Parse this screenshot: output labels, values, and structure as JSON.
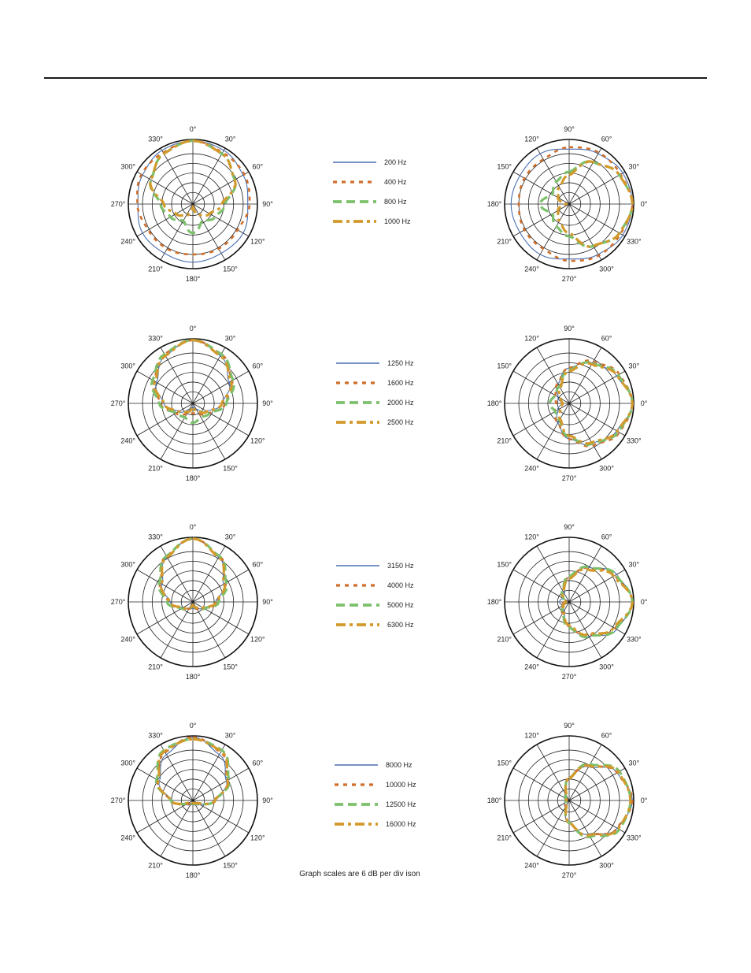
{
  "footnote": "Graph scales are 6 dB per div ison",
  "colors": {
    "blue": "#4a6fb0",
    "orange": "#cf6f2c",
    "green": "#7cc06b",
    "gold": "#d29a2c"
  },
  "chart_data": [
    {
      "type": "line",
      "polar": true,
      "orientation": "vertical",
      "angle_labels": [
        "0°",
        "30°",
        "60°",
        "90°",
        "120°",
        "150°",
        "180°",
        "210°",
        "240°",
        "270°",
        "300°",
        "330°"
      ],
      "series": [
        {
          "name": "200 Hz",
          "style": "solid",
          "color": "#4a6fb0",
          "r": [
            0.98,
            0.96,
            0.9,
            0.85,
            0.9,
            0.88,
            0.9,
            0.88,
            0.9,
            0.85,
            0.9,
            0.96
          ]
        },
        {
          "name": "400 Hz",
          "style": "dot",
          "color": "#cf6f2c",
          "r": [
            0.98,
            0.92,
            0.92,
            0.88,
            0.8,
            0.8,
            0.78,
            0.8,
            0.8,
            0.86,
            0.92,
            0.92
          ]
        },
        {
          "name": "800 Hz",
          "style": "dash",
          "color": "#7cc06b",
          "r": [
            0.98,
            0.9,
            0.75,
            0.5,
            0.4,
            0.3,
            0.45,
            0.3,
            0.4,
            0.5,
            0.75,
            0.9
          ]
        },
        {
          "name": "1000 Hz",
          "style": "dashdot",
          "color": "#d29a2c",
          "r": [
            0.98,
            0.9,
            0.75,
            0.45,
            0.3,
            0.2,
            0.05,
            0.2,
            0.3,
            0.45,
            0.75,
            0.9
          ]
        }
      ]
    },
    {
      "type": "line",
      "polar": true,
      "orientation": "horizontal",
      "angle_labels": [
        "90°",
        "60°",
        "30°",
        "0°",
        "330°",
        "300°",
        "270°",
        "240°",
        "210°",
        "180°",
        "150°",
        "120°"
      ],
      "series": [
        {
          "name": "200 Hz",
          "style": "solid",
          "color": "#4a6fb0",
          "r": [
            0.85,
            0.9,
            0.96,
            0.98,
            0.96,
            0.9,
            0.85,
            0.9,
            0.88,
            0.9,
            0.88,
            0.9
          ]
        },
        {
          "name": "400 Hz",
          "style": "dot",
          "color": "#cf6f2c",
          "r": [
            0.88,
            0.92,
            0.92,
            0.98,
            0.92,
            0.92,
            0.88,
            0.8,
            0.8,
            0.78,
            0.8,
            0.8
          ]
        },
        {
          "name": "800 Hz",
          "style": "dash",
          "color": "#7cc06b",
          "r": [
            0.5,
            0.75,
            0.9,
            0.98,
            0.9,
            0.75,
            0.5,
            0.4,
            0.3,
            0.45,
            0.3,
            0.4
          ]
        },
        {
          "name": "1000 Hz",
          "style": "dashdot",
          "color": "#d29a2c",
          "r": [
            0.45,
            0.75,
            0.9,
            0.98,
            0.9,
            0.75,
            0.45,
            0.3,
            0.2,
            0.05,
            0.2,
            0.3
          ]
        }
      ]
    },
    {
      "type": "line",
      "polar": true,
      "orientation": "vertical",
      "angle_labels": [
        "0°",
        "30°",
        "60°",
        "90°",
        "120°",
        "150°",
        "180°",
        "210°",
        "240°",
        "270°",
        "300°",
        "330°"
      ],
      "series": [
        {
          "name": "1250 Hz",
          "style": "solid",
          "color": "#4a6fb0",
          "r": [
            0.98,
            0.85,
            0.65,
            0.45,
            0.25,
            0.1,
            0.05,
            0.1,
            0.25,
            0.45,
            0.65,
            0.85
          ]
        },
        {
          "name": "1600 Hz",
          "style": "dot",
          "color": "#cf6f2c",
          "r": [
            0.98,
            0.88,
            0.7,
            0.5,
            0.3,
            0.2,
            0.15,
            0.2,
            0.3,
            0.5,
            0.7,
            0.88
          ]
        },
        {
          "name": "2000 Hz",
          "style": "dash",
          "color": "#7cc06b",
          "r": [
            0.98,
            0.88,
            0.72,
            0.52,
            0.3,
            0.25,
            0.3,
            0.25,
            0.3,
            0.52,
            0.72,
            0.88
          ]
        },
        {
          "name": "2500 Hz",
          "style": "dashdot",
          "color": "#d29a2c",
          "r": [
            0.98,
            0.85,
            0.68,
            0.45,
            0.25,
            0.15,
            0.05,
            0.15,
            0.25,
            0.45,
            0.68,
            0.85
          ]
        }
      ]
    },
    {
      "type": "line",
      "polar": true,
      "orientation": "horizontal",
      "angle_labels": [
        "90°",
        "60°",
        "30°",
        "0°",
        "330°",
        "300°",
        "270°",
        "240°",
        "210°",
        "180°",
        "150°",
        "120°"
      ],
      "series": [
        {
          "name": "1250 Hz",
          "style": "solid",
          "color": "#4a6fb0",
          "r": [
            0.55,
            0.72,
            0.85,
            0.98,
            0.85,
            0.72,
            0.55,
            0.35,
            0.2,
            0.1,
            0.2,
            0.35
          ]
        },
        {
          "name": "1600 Hz",
          "style": "dot",
          "color": "#cf6f2c",
          "r": [
            0.55,
            0.75,
            0.9,
            0.98,
            0.9,
            0.75,
            0.55,
            0.35,
            0.25,
            0.2,
            0.25,
            0.35
          ]
        },
        {
          "name": "2000 Hz",
          "style": "dash",
          "color": "#7cc06b",
          "r": [
            0.52,
            0.72,
            0.88,
            0.98,
            0.88,
            0.72,
            0.52,
            0.3,
            0.25,
            0.3,
            0.25,
            0.3
          ]
        },
        {
          "name": "2500 Hz",
          "style": "dashdot",
          "color": "#d29a2c",
          "r": [
            0.5,
            0.7,
            0.86,
            0.98,
            0.86,
            0.7,
            0.5,
            0.28,
            0.15,
            0.1,
            0.15,
            0.28
          ]
        }
      ]
    },
    {
      "type": "line",
      "polar": true,
      "orientation": "vertical",
      "angle_labels": [
        "0°",
        "30°",
        "60°",
        "90°",
        "120°",
        "150°",
        "180°",
        "210°",
        "240°",
        "270°",
        "300°",
        "330°"
      ],
      "series": [
        {
          "name": "3150 Hz",
          "style": "solid",
          "color": "#4a6fb0",
          "r": [
            0.98,
            0.8,
            0.55,
            0.35,
            0.18,
            0.12,
            0.1,
            0.12,
            0.18,
            0.35,
            0.55,
            0.8
          ]
        },
        {
          "name": "4000 Hz",
          "style": "dot",
          "color": "#cf6f2c",
          "r": [
            0.98,
            0.82,
            0.58,
            0.38,
            0.2,
            0.12,
            0.08,
            0.12,
            0.2,
            0.38,
            0.58,
            0.82
          ]
        },
        {
          "name": "5000 Hz",
          "style": "dash",
          "color": "#7cc06b",
          "r": [
            0.98,
            0.82,
            0.6,
            0.4,
            0.2,
            0.1,
            0.06,
            0.1,
            0.2,
            0.4,
            0.6,
            0.82
          ]
        },
        {
          "name": "6300 Hz",
          "style": "dashdot",
          "color": "#d29a2c",
          "r": [
            0.98,
            0.8,
            0.56,
            0.36,
            0.18,
            0.1,
            0.05,
            0.1,
            0.18,
            0.36,
            0.56,
            0.8
          ]
        }
      ]
    },
    {
      "type": "line",
      "polar": true,
      "orientation": "horizontal",
      "angle_labels": [
        "90°",
        "60°",
        "30°",
        "0°",
        "330°",
        "300°",
        "270°",
        "240°",
        "210°",
        "180°",
        "150°",
        "120°"
      ],
      "series": [
        {
          "name": "3150 Hz",
          "style": "solid",
          "color": "#4a6fb0",
          "r": [
            0.38,
            0.62,
            0.85,
            0.98,
            0.85,
            0.62,
            0.38,
            0.15,
            0.12,
            0.15,
            0.12,
            0.15
          ]
        },
        {
          "name": "4000 Hz",
          "style": "dot",
          "color": "#cf6f2c",
          "r": [
            0.38,
            0.6,
            0.82,
            0.98,
            0.82,
            0.6,
            0.38,
            0.2,
            0.12,
            0.08,
            0.12,
            0.2
          ]
        },
        {
          "name": "5000 Hz",
          "style": "dash",
          "color": "#7cc06b",
          "r": [
            0.4,
            0.62,
            0.84,
            0.98,
            0.84,
            0.62,
            0.4,
            0.2,
            0.1,
            0.06,
            0.1,
            0.2
          ]
        },
        {
          "name": "6300 Hz",
          "style": "dashdot",
          "color": "#d29a2c",
          "r": [
            0.36,
            0.58,
            0.8,
            0.98,
            0.8,
            0.58,
            0.36,
            0.18,
            0.1,
            0.05,
            0.1,
            0.18
          ]
        }
      ]
    },
    {
      "type": "line",
      "polar": true,
      "orientation": "vertical",
      "angle_labels": [
        "0°",
        "30°",
        "60°",
        "90°",
        "120°",
        "150°",
        "180°",
        "210°",
        "240°",
        "270°",
        "300°",
        "330°"
      ],
      "series": [
        {
          "name": "8000 Hz",
          "style": "solid",
          "color": "#4a6fb0",
          "r": [
            0.98,
            0.82,
            0.6,
            0.32,
            0.12,
            0.08,
            0.06,
            0.08,
            0.12,
            0.32,
            0.6,
            0.82
          ]
        },
        {
          "name": "10000 Hz",
          "style": "dot",
          "color": "#cf6f2c",
          "r": [
            0.98,
            0.86,
            0.62,
            0.35,
            0.1,
            0.06,
            0.05,
            0.06,
            0.1,
            0.35,
            0.62,
            0.86
          ]
        },
        {
          "name": "12500 Hz",
          "style": "dash",
          "color": "#7cc06b",
          "r": [
            0.95,
            0.9,
            0.65,
            0.34,
            0.1,
            0.06,
            0.04,
            0.06,
            0.1,
            0.34,
            0.65,
            0.9
          ]
        },
        {
          "name": "16000 Hz",
          "style": "dashdot",
          "color": "#d29a2c",
          "r": [
            0.95,
            0.88,
            0.62,
            0.34,
            0.08,
            0.05,
            0.04,
            0.05,
            0.08,
            0.34,
            0.62,
            0.88
          ]
        }
      ]
    },
    {
      "type": "line",
      "polar": true,
      "orientation": "horizontal",
      "angle_labels": [
        "90°",
        "60°",
        "30°",
        "0°",
        "330°",
        "300°",
        "270°",
        "240°",
        "210°",
        "180°",
        "150°",
        "120°"
      ],
      "series": [
        {
          "name": "8000 Hz",
          "style": "solid",
          "color": "#4a6fb0",
          "r": [
            0.35,
            0.6,
            0.86,
            0.98,
            0.86,
            0.6,
            0.35,
            0.12,
            0.08,
            0.06,
            0.08,
            0.12
          ]
        },
        {
          "name": "10000 Hz",
          "style": "dot",
          "color": "#cf6f2c",
          "r": [
            0.35,
            0.62,
            0.86,
            0.98,
            0.86,
            0.62,
            0.35,
            0.1,
            0.06,
            0.05,
            0.06,
            0.1
          ]
        },
        {
          "name": "12500 Hz",
          "style": "dash",
          "color": "#7cc06b",
          "r": [
            0.34,
            0.65,
            0.9,
            0.95,
            0.9,
            0.65,
            0.34,
            0.1,
            0.06,
            0.04,
            0.06,
            0.1
          ]
        },
        {
          "name": "16000 Hz",
          "style": "dashdot",
          "color": "#d29a2c",
          "r": [
            0.34,
            0.62,
            0.88,
            0.95,
            0.88,
            0.62,
            0.34,
            0.08,
            0.05,
            0.04,
            0.05,
            0.08
          ]
        }
      ]
    }
  ],
  "legends": [
    {
      "items": [
        {
          "label": "200 Hz",
          "style": "solid",
          "color": "#4a6fb0"
        },
        {
          "label": "400 Hz",
          "style": "dot",
          "color": "#cf6f2c"
        },
        {
          "label": "800 Hz",
          "style": "dash",
          "color": "#7cc06b"
        },
        {
          "label": "1000 Hz",
          "style": "dashdot",
          "color": "#d29a2c"
        }
      ]
    },
    {
      "items": [
        {
          "label": "1250 Hz",
          "style": "solid",
          "color": "#4a6fb0"
        },
        {
          "label": "1600 Hz",
          "style": "dot",
          "color": "#cf6f2c"
        },
        {
          "label": "2000 Hz",
          "style": "dash",
          "color": "#7cc06b"
        },
        {
          "label": "2500 Hz",
          "style": "dashdot",
          "color": "#d29a2c"
        }
      ]
    },
    {
      "items": [
        {
          "label": "3150 Hz",
          "style": "solid",
          "color": "#4a6fb0"
        },
        {
          "label": "4000 Hz",
          "style": "dot",
          "color": "#cf6f2c"
        },
        {
          "label": "5000 Hz",
          "style": "dash",
          "color": "#7cc06b"
        },
        {
          "label": "6300 Hz",
          "style": "dashdot",
          "color": "#d29a2c"
        }
      ]
    },
    {
      "items": [
        {
          "label": "8000 Hz",
          "style": "solid",
          "color": "#4a6fb0"
        },
        {
          "label": "10000 Hz",
          "style": "dot",
          "color": "#cf6f2c"
        },
        {
          "label": "12500 Hz",
          "style": "dash",
          "color": "#7cc06b"
        },
        {
          "label": "16000 Hz",
          "style": "dashdot",
          "color": "#d29a2c"
        }
      ]
    }
  ]
}
